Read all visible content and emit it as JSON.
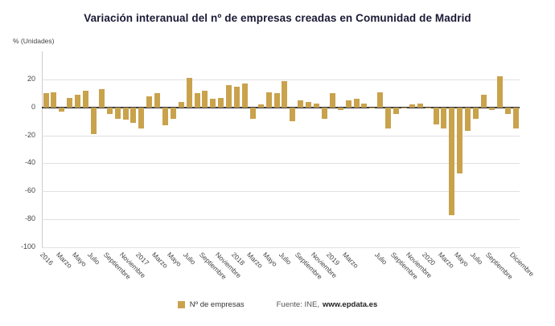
{
  "title": "Variación interanual del nº de empresas creadas en Comunidad de Madrid",
  "y_axis_unit_label": "% (Unidades)",
  "legend": {
    "series_label": "Nº de empresas",
    "source_prefix": "Fuente: INE,",
    "source_site": "www.epdata.es"
  },
  "colors": {
    "bar": "#c9a24c",
    "grid": "#e0e0e0",
    "zero_line": "#3d3d3d",
    "title_text": "#1a1a35",
    "axis_text": "#444444"
  },
  "chart_data": {
    "type": "bar",
    "title": "Variación interanual del nº de empresas creadas en Comunidad de Madrid",
    "ylabel": "% (Unidades)",
    "ylim": [
      -100,
      40
    ],
    "yticks": [
      20,
      0,
      -20,
      -40,
      -60,
      -80,
      -100
    ],
    "grid": true,
    "legend_position": "bottom",
    "series_name": "Nº de empresas",
    "source": "Fuente: INE, www.epdata.es",
    "x_range": "Enero 2016 - Diciembre 2020 (valores mensuales)",
    "values": [
      10,
      11,
      -3,
      7,
      9,
      12,
      -19,
      13,
      -5,
      -8,
      -9,
      -11,
      -15,
      8,
      10,
      -13,
      -8,
      4,
      21,
      10,
      12,
      6,
      7,
      16,
      15,
      17,
      -8,
      2,
      11,
      10,
      19,
      -10,
      5,
      4,
      3,
      -8,
      10,
      -2,
      5,
      6,
      3,
      -1,
      11,
      -15,
      -5,
      -1,
      2,
      3,
      -1,
      -12,
      -15,
      -77,
      -47,
      -17,
      -8,
      9,
      -2,
      22,
      -5,
      -15
    ],
    "xtick_labels": [
      {
        "index": 0,
        "label": "2016"
      },
      {
        "index": 2,
        "label": "Marzo"
      },
      {
        "index": 4,
        "label": "Mayo"
      },
      {
        "index": 6,
        "label": "Julio"
      },
      {
        "index": 8,
        "label": "Septiembre"
      },
      {
        "index": 10,
        "label": "Noviembre"
      },
      {
        "index": 12,
        "label": "2017"
      },
      {
        "index": 14,
        "label": "Marzo"
      },
      {
        "index": 16,
        "label": "Mayo"
      },
      {
        "index": 18,
        "label": "Julio"
      },
      {
        "index": 20,
        "label": "Septiembre"
      },
      {
        "index": 22,
        "label": "Noviembre"
      },
      {
        "index": 24,
        "label": "2018"
      },
      {
        "index": 26,
        "label": "Marzo"
      },
      {
        "index": 28,
        "label": "Mayo"
      },
      {
        "index": 30,
        "label": "Julio"
      },
      {
        "index": 32,
        "label": "Septiembre"
      },
      {
        "index": 34,
        "label": "Noviembre"
      },
      {
        "index": 36,
        "label": "2019"
      },
      {
        "index": 38,
        "label": "Marzo"
      },
      {
        "index": 42,
        "label": "Julio"
      },
      {
        "index": 44,
        "label": "Septiembre"
      },
      {
        "index": 46,
        "label": "Noviembre"
      },
      {
        "index": 48,
        "label": "2020"
      },
      {
        "index": 50,
        "label": "Marzo"
      },
      {
        "index": 52,
        "label": "Mayo"
      },
      {
        "index": 54,
        "label": "Julio"
      },
      {
        "index": 56,
        "label": "Septiembre"
      },
      {
        "index": 59,
        "label": "Diciembre"
      }
    ]
  }
}
